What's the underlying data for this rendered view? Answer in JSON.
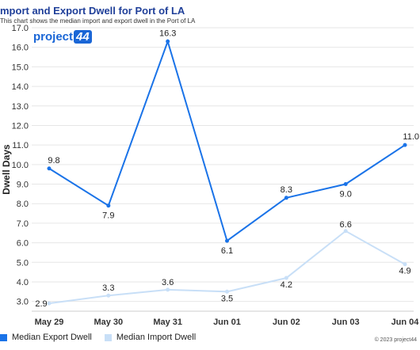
{
  "header": {
    "title": "mport and Export Dwell for Port of LA",
    "subtitle": "This chart shows the median import and export dwell in the Port of LA"
  },
  "logo": {
    "text_main": "project",
    "text_box": "44"
  },
  "chart_data": {
    "type": "line",
    "title": "mport and Export Dwell for Port of LA",
    "subtitle": "This chart shows the median import and export dwell in the Port of LA",
    "xlabel": "",
    "ylabel": "Dwell Days",
    "categories": [
      "May 29",
      "May 30",
      "May 31",
      "Jun 01",
      "Jun 02",
      "Jun 03",
      "Jun 04"
    ],
    "ylim": [
      2.5,
      17.0
    ],
    "yticks": [
      "3.0",
      "4.0",
      "5.0",
      "6.0",
      "7.0",
      "8.0",
      "9.0",
      "10.0",
      "11.0",
      "12.0",
      "13.0",
      "14.0",
      "15.0",
      "16.0",
      "17.0"
    ],
    "grid": true,
    "legend_position": "bottom-left",
    "series": [
      {
        "name": "Median Export Dwell",
        "color": "#1a73e8",
        "values": [
          9.8,
          7.9,
          16.3,
          6.1,
          8.3,
          9.0,
          11.0
        ],
        "labels": [
          "9.8",
          "7.9",
          "16.3",
          "6.1",
          "8.3",
          "9.0",
          "11.0"
        ]
      },
      {
        "name": "Median Import Dwell",
        "color": "#c8dff7",
        "values": [
          2.9,
          3.3,
          3.6,
          3.5,
          4.2,
          6.6,
          4.9
        ],
        "labels": [
          "2.9",
          "3.3",
          "3.6",
          "3.5",
          "4.2",
          "6.6",
          "4.9"
        ]
      }
    ]
  },
  "legend": {
    "export_label": "Median Export Dwell",
    "import_label": "Median Import Dwell"
  },
  "credit": "© 2023 project44"
}
